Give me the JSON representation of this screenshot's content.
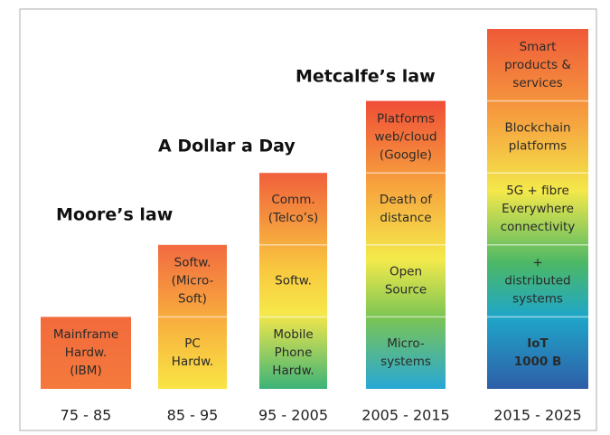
{
  "headings": [
    "Moore’s law",
    "A Dollar a Day",
    "Metcalfe’s law"
  ],
  "columns": [
    {
      "period": "75 - 85",
      "cells": [
        [
          "Mainframe",
          "Hardw.",
          "(IBM)"
        ]
      ]
    },
    {
      "period": "85 - 95",
      "cells": [
        [
          "Softw.",
          "(Micro-",
          "Soft)"
        ],
        [
          "PC",
          "Hardw."
        ]
      ]
    },
    {
      "period": "95 - 2005",
      "cells": [
        [
          "Comm.",
          "(Telco’s)"
        ],
        [
          "Softw."
        ],
        [
          "Mobile",
          "Phone",
          "Hardw."
        ]
      ]
    },
    {
      "period": "2005 - 2015",
      "cells": [
        [
          "Platforms",
          "web/cloud",
          "(Google)"
        ],
        [
          "Death of",
          "distance"
        ],
        [
          "Open",
          "Source"
        ],
        [
          "Micro-",
          "systems"
        ]
      ]
    },
    {
      "period": "2015 - 2025",
      "cells": [
        [
          "Smart",
          "products &",
          "services"
        ],
        [
          "Blockchain",
          "platforms"
        ],
        [
          "5G + fibre",
          "Everywhere",
          "connectivity"
        ],
        [
          "+",
          "distributed",
          "systems"
        ],
        [
          "IoT",
          "1000 B"
        ]
      ]
    }
  ]
}
